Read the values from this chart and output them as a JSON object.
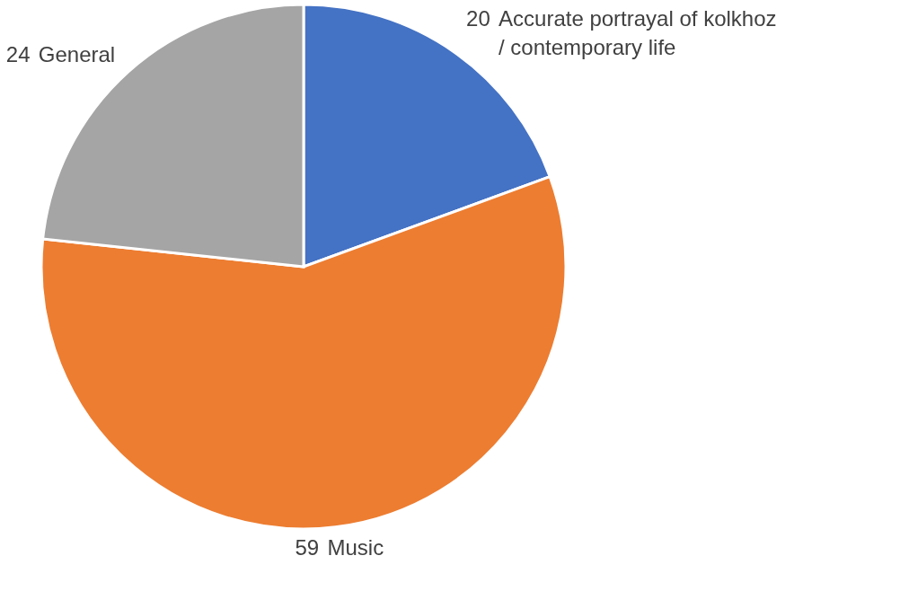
{
  "chart_data": {
    "type": "pie",
    "categories": [
      "Accurate portrayal of kolkhoz / contemporary life",
      "Music",
      "General"
    ],
    "values": [
      20,
      59,
      24
    ],
    "colors": [
      "#4472c4",
      "#ed7d31",
      "#a5a5a5"
    ],
    "data_labels": true
  }
}
